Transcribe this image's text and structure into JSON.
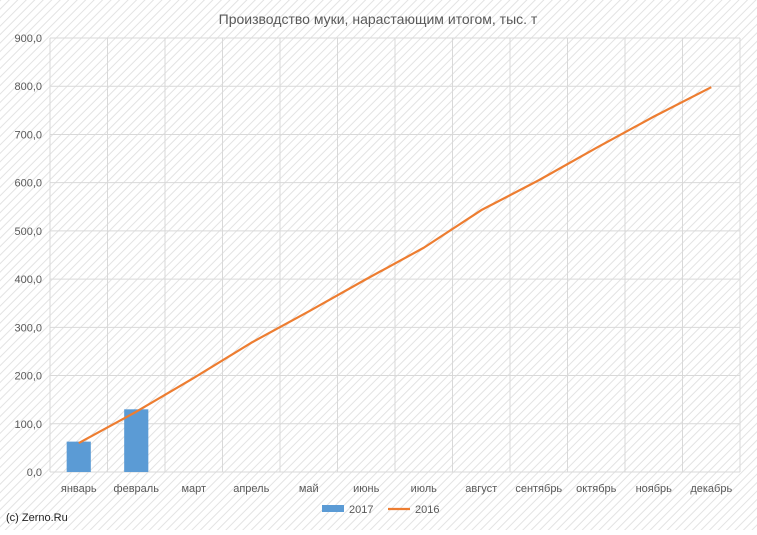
{
  "chart_data": {
    "type": "bar",
    "title": "Производство муки, нарастающим итогом, тыс. т",
    "xlabel": "",
    "ylabel": "",
    "categories": [
      "январь",
      "февраль",
      "март",
      "апрель",
      "май",
      "июнь",
      "июль",
      "август",
      "сентябрь",
      "октябрь",
      "ноябрь",
      "декабрь"
    ],
    "ylim": [
      0,
      900
    ],
    "yticks": [
      "0,0",
      "100,0",
      "200,0",
      "300,0",
      "400,0",
      "500,0",
      "600,0",
      "700,0",
      "800,0",
      "900,0"
    ],
    "grid": true,
    "legend_position": "bottom",
    "series": [
      {
        "name": "2017",
        "type": "bar",
        "color": "#5b9bd5",
        "values": [
          63,
          130,
          null,
          null,
          null,
          null,
          null,
          null,
          null,
          null,
          null,
          null
        ]
      },
      {
        "name": "2016",
        "type": "line",
        "color": "#ed7d31",
        "values": [
          60,
          125,
          195,
          268,
          333,
          400,
          465,
          543,
          605,
          672,
          737,
          798
        ]
      }
    ]
  },
  "footer": {
    "copyright": "(c) Zerno.Ru"
  }
}
